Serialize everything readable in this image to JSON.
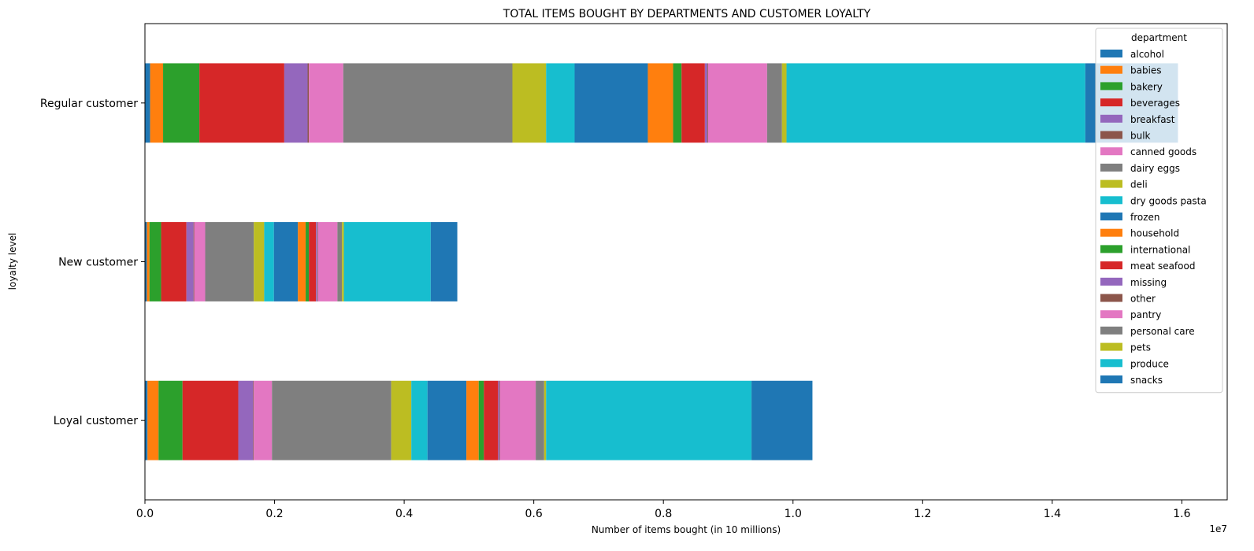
{
  "chart_data": {
    "type": "bar",
    "orientation": "horizontal",
    "stacked": true,
    "title": "TOTAL ITEMS BOUGHT BY DEPARTMENTS AND CUSTOMER LOYALTY",
    "xlabel": "Number of items bought (in 10 millions)",
    "ylabel": "loyalty level",
    "x_offset_label": "1e7",
    "xlim": [
      0,
      16700000
    ],
    "xticks": [
      0,
      2000000,
      4000000,
      6000000,
      8000000,
      10000000,
      12000000,
      14000000,
      16000000
    ],
    "xtick_labels": [
      "0.0",
      "0.2",
      "0.4",
      "0.6",
      "0.8",
      "1.0",
      "1.2",
      "1.4",
      "1.6"
    ],
    "categories": [
      "Loyal customer",
      "New customer",
      "Regular customer"
    ],
    "legend": {
      "title": "department",
      "placement": "upper right"
    },
    "grid": false,
    "series": [
      {
        "name": "alcohol",
        "color": "#1f77b4",
        "values": [
          40000,
          30000,
          80000
        ]
      },
      {
        "name": "babies",
        "color": "#ff7f0e",
        "values": [
          170000,
          40000,
          200000
        ]
      },
      {
        "name": "bakery",
        "color": "#2ca02c",
        "values": [
          370000,
          180000,
          560000
        ]
      },
      {
        "name": "beverages",
        "color": "#d62728",
        "values": [
          860000,
          390000,
          1310000
        ]
      },
      {
        "name": "breakfast",
        "color": "#9467bd",
        "values": [
          230000,
          110000,
          360000
        ]
      },
      {
        "name": "bulk",
        "color": "#8c564b",
        "values": [
          10000,
          10000,
          20000
        ]
      },
      {
        "name": "canned goods",
        "color": "#e377c2",
        "values": [
          280000,
          170000,
          530000
        ]
      },
      {
        "name": "dairy eggs",
        "color": "#7f7f7f",
        "values": [
          1840000,
          750000,
          2610000
        ]
      },
      {
        "name": "deli",
        "color": "#bcbd22",
        "values": [
          310000,
          160000,
          520000
        ]
      },
      {
        "name": "dry goods pasta",
        "color": "#17becf",
        "values": [
          250000,
          150000,
          440000
        ]
      },
      {
        "name": "frozen",
        "color": "#1f77b4",
        "values": [
          600000,
          370000,
          1130000
        ]
      },
      {
        "name": "household",
        "color": "#ff7f0e",
        "values": [
          190000,
          120000,
          390000
        ]
      },
      {
        "name": "international",
        "color": "#2ca02c",
        "values": [
          80000,
          50000,
          130000
        ]
      },
      {
        "name": "meat seafood",
        "color": "#d62728",
        "values": [
          220000,
          110000,
          360000
        ]
      },
      {
        "name": "missing",
        "color": "#9467bd",
        "values": [
          20000,
          20000,
          40000
        ]
      },
      {
        "name": "other",
        "color": "#8c564b",
        "values": [
          10000,
          10000,
          10000
        ]
      },
      {
        "name": "pantry",
        "color": "#e377c2",
        "values": [
          550000,
          300000,
          910000
        ]
      },
      {
        "name": "personal care",
        "color": "#7f7f7f",
        "values": [
          130000,
          70000,
          230000
        ]
      },
      {
        "name": "pets",
        "color": "#bcbd22",
        "values": [
          30000,
          30000,
          70000
        ]
      },
      {
        "name": "produce",
        "color": "#17becf",
        "values": [
          3170000,
          1340000,
          4610000
        ]
      },
      {
        "name": "snacks",
        "color": "#1f77b4",
        "values": [
          940000,
          410000,
          1430000
        ]
      }
    ]
  }
}
